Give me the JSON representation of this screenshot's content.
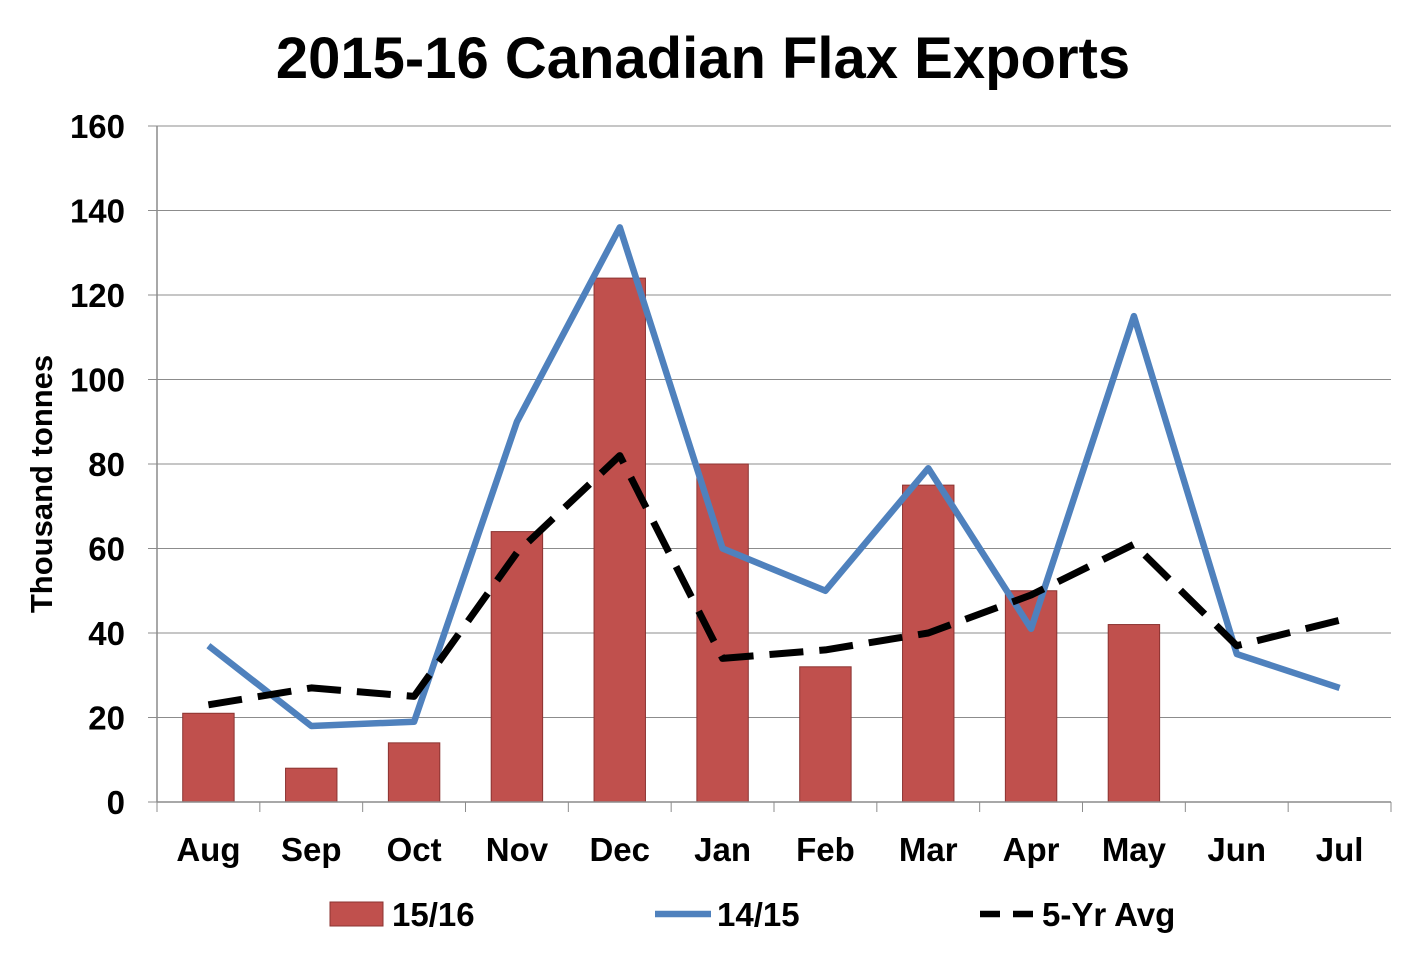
{
  "chart_data": {
    "type": "bar",
    "title": "2015-16 Canadian Flax Exports",
    "xlabel": "",
    "ylabel": "Thousand tonnes",
    "ylim": [
      0,
      160
    ],
    "yticks": [
      "0",
      "20",
      "40",
      "60",
      "80",
      "100",
      "120",
      "140",
      "160"
    ],
    "categories": [
      "Aug",
      "Sep",
      "Oct",
      "Nov",
      "Dec",
      "Jan",
      "Feb",
      "Mar",
      "Apr",
      "May",
      "Jun",
      "Jul"
    ],
    "grid": true,
    "legend_position": "bottom",
    "series": [
      {
        "name": "15/16",
        "type": "bar",
        "color": "#c0504d",
        "values": [
          21,
          8,
          14,
          64,
          124,
          80,
          32,
          75,
          50,
          42,
          null,
          null
        ]
      },
      {
        "name": "14/15",
        "type": "line",
        "color": "#4f81bd",
        "values": [
          37,
          18,
          19,
          90,
          136,
          60,
          50,
          79,
          41,
          115,
          35,
          27
        ]
      },
      {
        "name": "5-Yr Avg",
        "type": "line",
        "style": "dashed",
        "color": "#000000",
        "values": [
          23,
          27,
          25,
          59,
          82,
          34,
          36,
          40,
          49,
          61,
          37,
          43
        ]
      }
    ]
  }
}
